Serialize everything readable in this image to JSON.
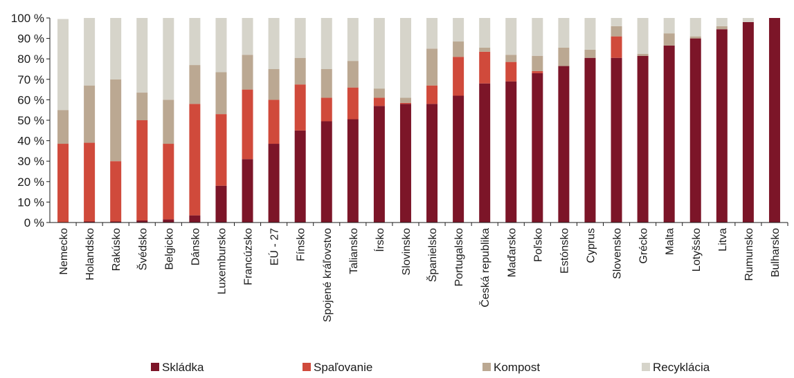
{
  "chart_data": {
    "type": "bar",
    "stacked": true,
    "percent_stacked": true,
    "title": "",
    "xlabel": "",
    "ylabel": "",
    "ylim": [
      0,
      100
    ],
    "grid": false,
    "legend_position": "bottom",
    "y_ticks": [
      "0 %",
      "10 %",
      "20 %",
      "30 %",
      "40 %",
      "50 %",
      "60 %",
      "70 %",
      "80 %",
      "90 %",
      "100 %"
    ],
    "categories": [
      "Nemecko",
      "Holandsko",
      "Rakúsko",
      "Švédsko",
      "Belgicko",
      "Dánsko",
      "Luxembursko",
      "Francúzsko",
      "EÚ - 27",
      "Fínsko",
      "Spojené kráľovstvo",
      "Taliansko",
      "Írsko",
      "Slovinsko",
      "Španielsko",
      "Portugalsko",
      "Česká republika",
      "Maďarsko",
      "Poľsko",
      "Estónsko",
      "Cyprus",
      "Slovensko",
      "Grécko",
      "Malta",
      "Lotyšsko",
      "Litva",
      "Rumunsko",
      "Bulharsko"
    ],
    "series": [
      {
        "name": "Skládka",
        "color": "#7c1528",
        "values": [
          0,
          0.5,
          0.5,
          1,
          1.5,
          3.5,
          18,
          31,
          38.5,
          45,
          49.5,
          50.5,
          57,
          58,
          58,
          62,
          68,
          69,
          73,
          76.5,
          80.5,
          80.5,
          81.5,
          86.5,
          90,
          94.5,
          98,
          100
        ]
      },
      {
        "name": "Spaľovanie",
        "color": "#d04a3b",
        "values": [
          38.5,
          38.5,
          29.5,
          49,
          37,
          54.5,
          35,
          34,
          21.5,
          22.5,
          11.5,
          15.5,
          4,
          0.5,
          9,
          19,
          15.5,
          9.5,
          1,
          0,
          0,
          10.5,
          0,
          0,
          0,
          0,
          0,
          0
        ]
      },
      {
        "name": "Kompost",
        "color": "#bba892",
        "values": [
          16.5,
          28,
          40,
          13.5,
          21.5,
          19,
          20.5,
          17,
          15,
          13,
          14,
          13,
          4.5,
          2.5,
          18,
          7.5,
          2,
          3.5,
          7.5,
          9,
          4,
          5,
          1,
          6,
          1,
          1.5,
          0,
          0
        ]
      },
      {
        "name": "Recyklácia",
        "color": "#d6d4ca",
        "values": [
          44.5,
          33,
          30,
          36.5,
          40,
          23,
          26.5,
          18,
          25,
          19.5,
          25,
          21,
          34.5,
          39,
          15,
          11.5,
          14.5,
          18,
          18.5,
          14.5,
          15.5,
          4,
          17.5,
          7.5,
          9,
          4,
          2,
          0
        ]
      }
    ]
  }
}
